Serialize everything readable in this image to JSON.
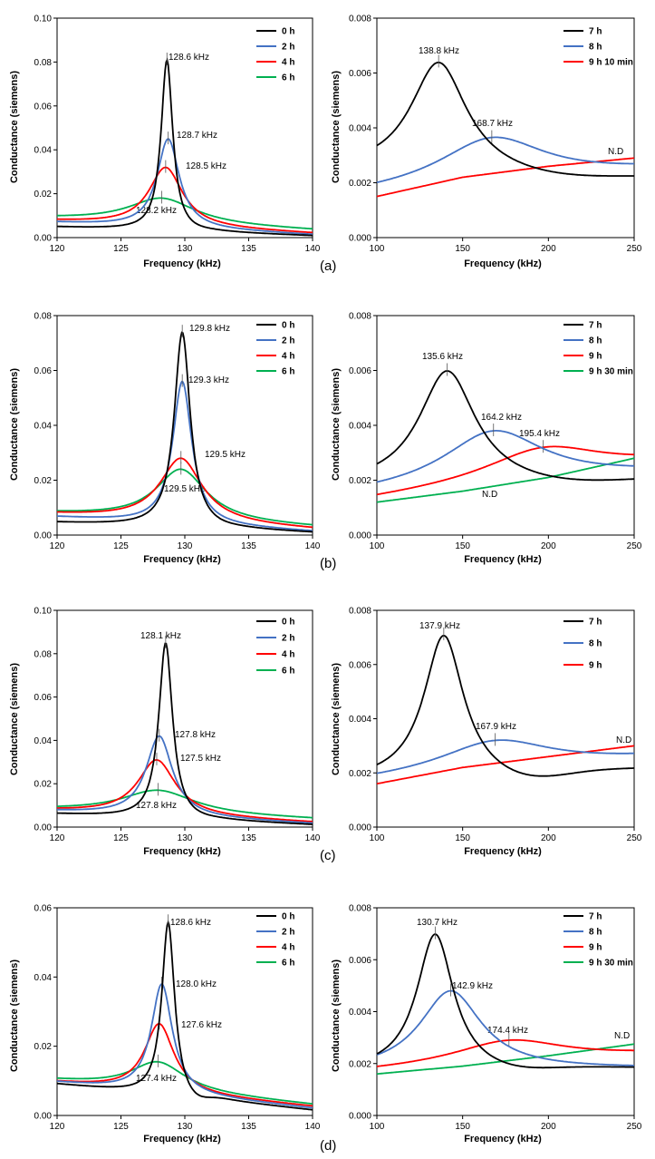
{
  "chart_data": [
    {
      "id": "a-left",
      "type": "line",
      "panel": "(a)",
      "xlabel": "Frequency (kHz)",
      "ylabel": "Conductance (siemens)",
      "xlim": [
        120,
        140
      ],
      "ylim": [
        0,
        0.1
      ],
      "xticks": [
        "120",
        "125",
        "130",
        "135",
        "140"
      ],
      "yticks": [
        "0.00",
        "0.02",
        "0.04",
        "0.06",
        "0.08",
        "0.10"
      ],
      "legend_position": "top-right",
      "series": [
        {
          "name": "0 h",
          "color": "#000000",
          "peak_x": 128.6,
          "peak_y": 0.081,
          "base_left": 0.0048,
          "base_right": 0.0008,
          "width": 0.55,
          "dip": 0.0005
        },
        {
          "name": "2 h",
          "color": "#4472C4",
          "peak_x": 128.7,
          "peak_y": 0.045,
          "base_left": 0.0068,
          "base_right": 0.0012,
          "width": 1.05
        },
        {
          "name": "4 h",
          "color": "#FF0000",
          "peak_x": 128.5,
          "peak_y": 0.032,
          "base_left": 0.0075,
          "base_right": 0.0018,
          "width": 1.6
        },
        {
          "name": "6 h",
          "color": "#00B050",
          "peak_x": 128.2,
          "peak_y": 0.018,
          "base_left": 0.0085,
          "base_right": 0.0032,
          "width": 3.2
        }
      ],
      "annotations": [
        "128.6 kHz",
        "128.7 kHz",
        "128.5 kHz",
        "128.2 kHz"
      ]
    },
    {
      "id": "a-right",
      "type": "line",
      "panel": "(a)",
      "xlabel": "Frequency (kHz)",
      "ylabel": "Conductance (siemens)",
      "xlim": [
        100,
        250
      ],
      "ylim": [
        0,
        0.008
      ],
      "xticks": [
        "100",
        "150",
        "200",
        "250"
      ],
      "yticks": [
        "0.000",
        "0.002",
        "0.004",
        "0.006",
        "0.008"
      ],
      "legend_position": "top-right",
      "series": [
        {
          "name": "7 h",
          "color": "#000000",
          "peak_x": 136,
          "peak_y": 0.0064,
          "base_left": 0.0024,
          "base_right": 0.0022,
          "width": 20,
          "wide": 1,
          "dip": 0.0002
        },
        {
          "name": "8 h",
          "color": "#4472C4",
          "peak_x": 167,
          "peak_y": 0.00365,
          "base_left": 0.0016,
          "base_right": 0.0024,
          "width": 38,
          "wide": 1
        },
        {
          "name": "9 h 10 min",
          "color": "#FF0000",
          "linear": [
            0.0015,
            0.0022,
            0.0026,
            0.0029
          ]
        }
      ],
      "annotations": [
        "138.8 kHz",
        "168.7 kHz",
        "N.D"
      ]
    },
    {
      "id": "b-left",
      "type": "line",
      "panel": "(b)",
      "xlabel": "Frequency (kHz)",
      "ylabel": "Conductance (siemens)",
      "xlim": [
        120,
        140
      ],
      "ylim": [
        0,
        0.08
      ],
      "xticks": [
        "120",
        "125",
        "130",
        "135",
        "140"
      ],
      "yticks": [
        "0.00",
        "0.02",
        "0.04",
        "0.06",
        "0.08"
      ],
      "legend_position": "top-right",
      "series": [
        {
          "name": "0 h",
          "color": "#000000",
          "peak_x": 129.8,
          "peak_y": 0.074,
          "base_left": 0.0045,
          "base_right": 0.0008,
          "width": 0.75,
          "dip": 0.0004
        },
        {
          "name": "2 h",
          "color": "#4472C4",
          "peak_x": 129.8,
          "peak_y": 0.056,
          "base_left": 0.0065,
          "base_right": 0.0012,
          "width": 0.9
        },
        {
          "name": "4 h",
          "color": "#FF0000",
          "peak_x": 129.7,
          "peak_y": 0.028,
          "base_left": 0.0075,
          "base_right": 0.002,
          "width": 2.0
        },
        {
          "name": "6 h",
          "color": "#00B050",
          "peak_x": 129.7,
          "peak_y": 0.024,
          "base_left": 0.0078,
          "base_right": 0.0028,
          "width": 2.4
        }
      ],
      "annotations": [
        "129.8 kHz",
        "129.3 kHz",
        "129.5 kHz",
        "129.5 kHz"
      ]
    },
    {
      "id": "b-right",
      "type": "line",
      "panel": "(b)",
      "xlabel": "Frequency (kHz)",
      "ylabel": "Conductance (siemens)",
      "xlim": [
        100,
        250
      ],
      "ylim": [
        0,
        0.008
      ],
      "xticks": [
        "100",
        "150",
        "200",
        "250"
      ],
      "yticks": [
        "0.000",
        "0.002",
        "0.004",
        "0.006",
        "0.008"
      ],
      "legend_position": "top-right",
      "series": [
        {
          "name": "7 h",
          "color": "#000000",
          "peak_x": 141,
          "peak_y": 0.006,
          "base_left": 0.0018,
          "base_right": 0.002,
          "width": 20,
          "wide": 1,
          "dip": 0.0002
        },
        {
          "name": "8 h",
          "color": "#4472C4",
          "peak_x": 168,
          "peak_y": 0.0038,
          "base_left": 0.0015,
          "base_right": 0.0022,
          "width": 36,
          "wide": 1
        },
        {
          "name": "9 h",
          "color": "#FF0000",
          "peak_x": 197,
          "peak_y": 0.0032,
          "base_left": 0.0013,
          "base_right": 0.0025,
          "width": 42,
          "wide": 1
        },
        {
          "name": "9 h 30 min",
          "color": "#00B050",
          "linear": [
            0.0012,
            0.0016,
            0.0021,
            0.0028
          ]
        }
      ],
      "annotations": [
        "135.6 kHz",
        "164.2 kHz",
        "195.4 kHz",
        "N.D"
      ]
    },
    {
      "id": "c-left",
      "type": "line",
      "panel": "(c)",
      "xlabel": "Frequency (kHz)",
      "ylabel": "Conductance (siemens)",
      "xlim": [
        120,
        140
      ],
      "ylim": [
        0,
        0.1
      ],
      "xticks": [
        "120",
        "125",
        "130",
        "135",
        "140"
      ],
      "yticks": [
        "0.00",
        "0.02",
        "0.04",
        "0.06",
        "0.08",
        "0.10"
      ],
      "legend_position": "top-right",
      "series": [
        {
          "name": "0 h",
          "color": "#000000",
          "peak_x": 128.5,
          "peak_y": 0.085,
          "base_left": 0.006,
          "base_right": 0.001,
          "width": 0.65,
          "dip": 0.0005
        },
        {
          "name": "2 h",
          "color": "#4472C4",
          "peak_x": 128.0,
          "peak_y": 0.042,
          "base_left": 0.0072,
          "base_right": 0.0015,
          "width": 1.25
        },
        {
          "name": "4 h",
          "color": "#FF0000",
          "peak_x": 127.8,
          "peak_y": 0.031,
          "base_left": 0.0075,
          "base_right": 0.002,
          "width": 1.8
        },
        {
          "name": "6 h",
          "color": "#00B050",
          "peak_x": 127.9,
          "peak_y": 0.017,
          "base_left": 0.0078,
          "base_right": 0.0035,
          "width": 3.5
        }
      ],
      "annotations": [
        "128.1 kHz",
        "127.8 kHz",
        "127.5 kHz",
        "127.8 kHz"
      ]
    },
    {
      "id": "c-right",
      "type": "line",
      "panel": "(c)",
      "xlabel": "Frequency (kHz)",
      "ylabel": "Conductance (siemens)",
      "xlim": [
        100,
        250
      ],
      "ylim": [
        0,
        0.008
      ],
      "xticks": [
        "100",
        "150",
        "200",
        "250"
      ],
      "yticks": [
        "0.000",
        "0.002",
        "0.004",
        "0.006",
        "0.008"
      ],
      "legend_position": "top-right",
      "series": [
        {
          "name": "7 h",
          "color": "#000000",
          "peak_x": 139,
          "peak_y": 0.0071,
          "base_left": 0.0017,
          "base_right": 0.0021,
          "width": 14,
          "wide": 1,
          "dip": 0.0004
        },
        {
          "name": "8 h",
          "color": "#4472C4",
          "peak_x": 169,
          "peak_y": 0.0032,
          "base_left": 0.0017,
          "base_right": 0.0025,
          "width": 40,
          "wide": 1
        },
        {
          "name": "9 h",
          "color": "#FF0000",
          "linear": [
            0.0016,
            0.0022,
            0.0026,
            0.003
          ]
        }
      ],
      "annotations": [
        "137.9 kHz",
        "167.9 kHz",
        "N.D"
      ]
    },
    {
      "id": "d-left",
      "type": "line",
      "panel": "(d)",
      "xlabel": "Frequency (kHz)",
      "ylabel": "Conductance (siemens)",
      "xlim": [
        120,
        140
      ],
      "ylim": [
        0,
        0.06
      ],
      "xticks": [
        "120",
        "125",
        "130",
        "135",
        "140"
      ],
      "yticks": [
        "0.00",
        "0.02",
        "0.04",
        "0.06"
      ],
      "legend_position": "top-right",
      "series": [
        {
          "name": "0 h",
          "color": "#000000",
          "peak_x": 128.7,
          "peak_y": 0.056,
          "base_left": 0.009,
          "base_right": 0.0015,
          "width": 0.6,
          "dip": 0.002
        },
        {
          "name": "2 h",
          "color": "#4472C4",
          "peak_x": 128.2,
          "peak_y": 0.038,
          "base_left": 0.0095,
          "base_right": 0.002,
          "width": 1.0
        },
        {
          "name": "4 h",
          "color": "#FF0000",
          "peak_x": 128.0,
          "peak_y": 0.0265,
          "base_left": 0.0095,
          "base_right": 0.0025,
          "width": 1.4
        },
        {
          "name": "6 h",
          "color": "#00B050",
          "peak_x": 127.9,
          "peak_y": 0.0155,
          "base_left": 0.01,
          "base_right": 0.003,
          "width": 2.6
        }
      ],
      "annotations": [
        "128.6 kHz",
        "128.0 kHz",
        "127.6 kHz",
        "127.4 kHz"
      ]
    },
    {
      "id": "d-right",
      "type": "line",
      "panel": "(d)",
      "xlabel": "Frequency (kHz)",
      "ylabel": "Conductance (siemens)",
      "xlim": [
        100,
        250
      ],
      "ylim": [
        0,
        0.008
      ],
      "xticks": [
        "100",
        "150",
        "200",
        "250"
      ],
      "yticks": [
        "0.000",
        "0.002",
        "0.004",
        "0.006",
        "0.008"
      ],
      "legend_position": "top-right",
      "series": [
        {
          "name": "7 h",
          "color": "#000000",
          "peak_x": 134,
          "peak_y": 0.007,
          "base_left": 0.0017,
          "base_right": 0.0018,
          "width": 13,
          "wide": 1,
          "dip": 0.0002
        },
        {
          "name": "8 h",
          "color": "#4472C4",
          "peak_x": 143,
          "peak_y": 0.0048,
          "base_left": 0.0017,
          "base_right": 0.0018,
          "width": 22,
          "wide": 1
        },
        {
          "name": "9 h",
          "color": "#FF0000",
          "peak_x": 177,
          "peak_y": 0.0029,
          "base_left": 0.0017,
          "base_right": 0.0023,
          "width": 40,
          "wide": 1
        },
        {
          "name": "9 h 30 min",
          "color": "#00B050",
          "linear": [
            0.0016,
            0.0019,
            0.0023,
            0.00275
          ]
        }
      ],
      "annotations": [
        "130.7 kHz",
        "142.9 kHz",
        "174.4 kHz",
        "N.D"
      ]
    }
  ]
}
